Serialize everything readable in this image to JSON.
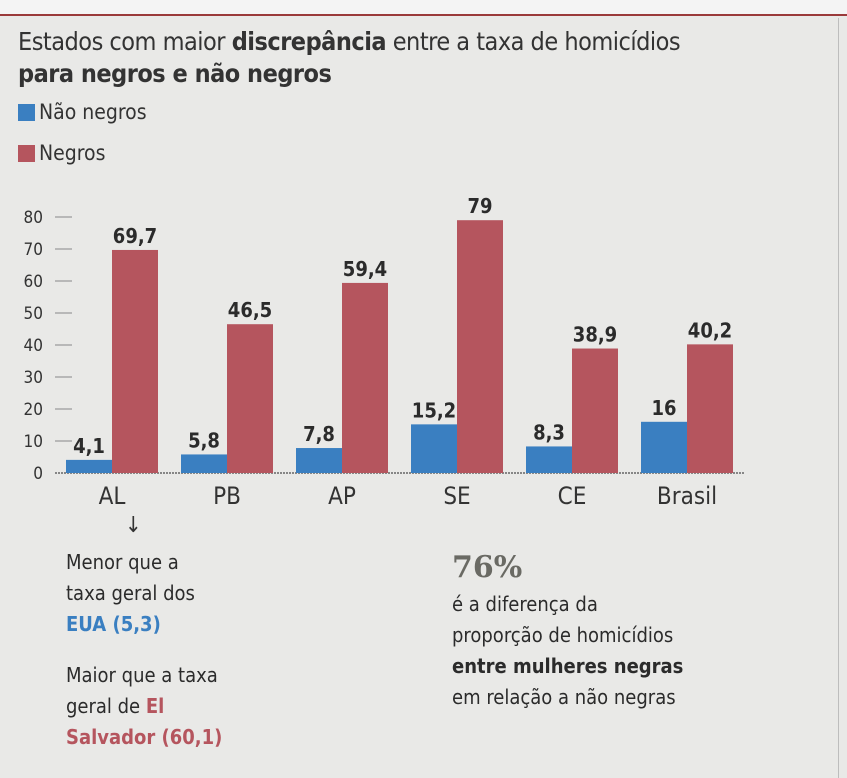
{
  "title": {
    "part1": "Estados com maior ",
    "bold1": "discrepância",
    "part2": " entre a taxa de homicídios",
    "bold2": "para negros e não negros"
  },
  "colors": {
    "nao_negros": "#3a7fc1",
    "negros": "#b5555e"
  },
  "chart_data": {
    "type": "bar",
    "title": "Estados com maior discrepância entre a taxa de homicídios para negros e não negros",
    "categories": [
      "AL",
      "PB",
      "AP",
      "SE",
      "CE",
      "Brasil"
    ],
    "series": [
      {
        "name": "Não negros",
        "values": [
          4.1,
          5.8,
          7.8,
          15.2,
          8.3,
          16
        ],
        "labels": [
          "4,1",
          "5,8",
          "7,8",
          "15,2",
          "8,3",
          "16"
        ]
      },
      {
        "name": "Negros",
        "values": [
          69.7,
          46.5,
          59.4,
          79,
          38.9,
          40.2
        ],
        "labels": [
          "69,7",
          "46,5",
          "59,4",
          "79",
          "38,9",
          "40,2"
        ]
      }
    ],
    "yticks": [
      "0",
      "10",
      "20",
      "30",
      "40",
      "50",
      "60",
      "70",
      "80"
    ],
    "ylim": [
      0,
      80
    ],
    "xlabel": "",
    "ylabel": "",
    "legend": "top-left",
    "grid": false
  },
  "annotations": {
    "arrow": "↓",
    "al_note1": {
      "line1": "Menor que a",
      "line2": "taxa geral dos",
      "highlight": "EUA (5,3)"
    },
    "al_note2": {
      "line1": "Maior que a taxa",
      "line2_plain": "geral de ",
      "line2_hl": "El",
      "line3_hl": "Salvador (60,1)"
    },
    "stat_value": "76%",
    "stat_line1": "é a diferença da",
    "stat_line2": "proporção de homicídios",
    "stat_line3_bold": "entre mulheres negras",
    "stat_line4": "em relação a não negras"
  }
}
